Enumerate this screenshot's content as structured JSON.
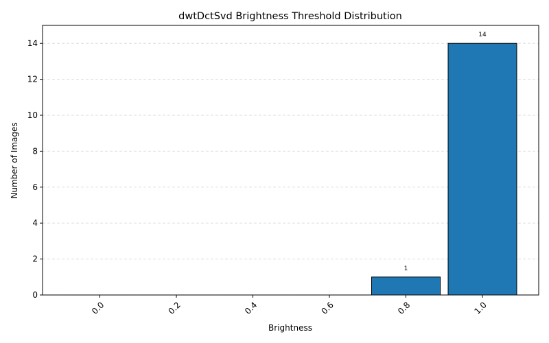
{
  "chart_data": {
    "type": "bar",
    "title": "dwtDctSvd Brightness Threshold Distribution",
    "xlabel": "Brightness",
    "ylabel": "Number of Images",
    "categories": [
      "0.0",
      "0.2",
      "0.4",
      "0.6",
      "0.8",
      "1.0"
    ],
    "values": [
      0,
      0,
      0,
      0,
      1,
      14
    ],
    "data_labels": [
      "",
      "",
      "",
      "",
      "1",
      "14"
    ],
    "ylim": [
      0,
      15
    ],
    "yticks": [
      "0",
      "2",
      "4",
      "6",
      "8",
      "10",
      "12",
      "14"
    ],
    "grid": "y-dashed",
    "bar_color": "#1f77b4",
    "edge_color": "#000000",
    "grid_color": "#dddddd"
  }
}
